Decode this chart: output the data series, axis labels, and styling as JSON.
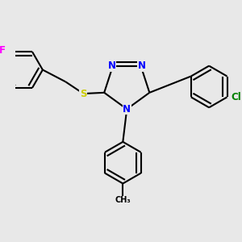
{
  "bg_color": "#e8e8e8",
  "bond_color": "#000000",
  "line_width": 1.5,
  "atom_colors": {
    "N": "#0000ff",
    "S": "#cccc00",
    "F": "#ff00ff",
    "Cl": "#008000",
    "C": "#000000"
  },
  "font_size": 8.5,
  "dbo": 0.018
}
